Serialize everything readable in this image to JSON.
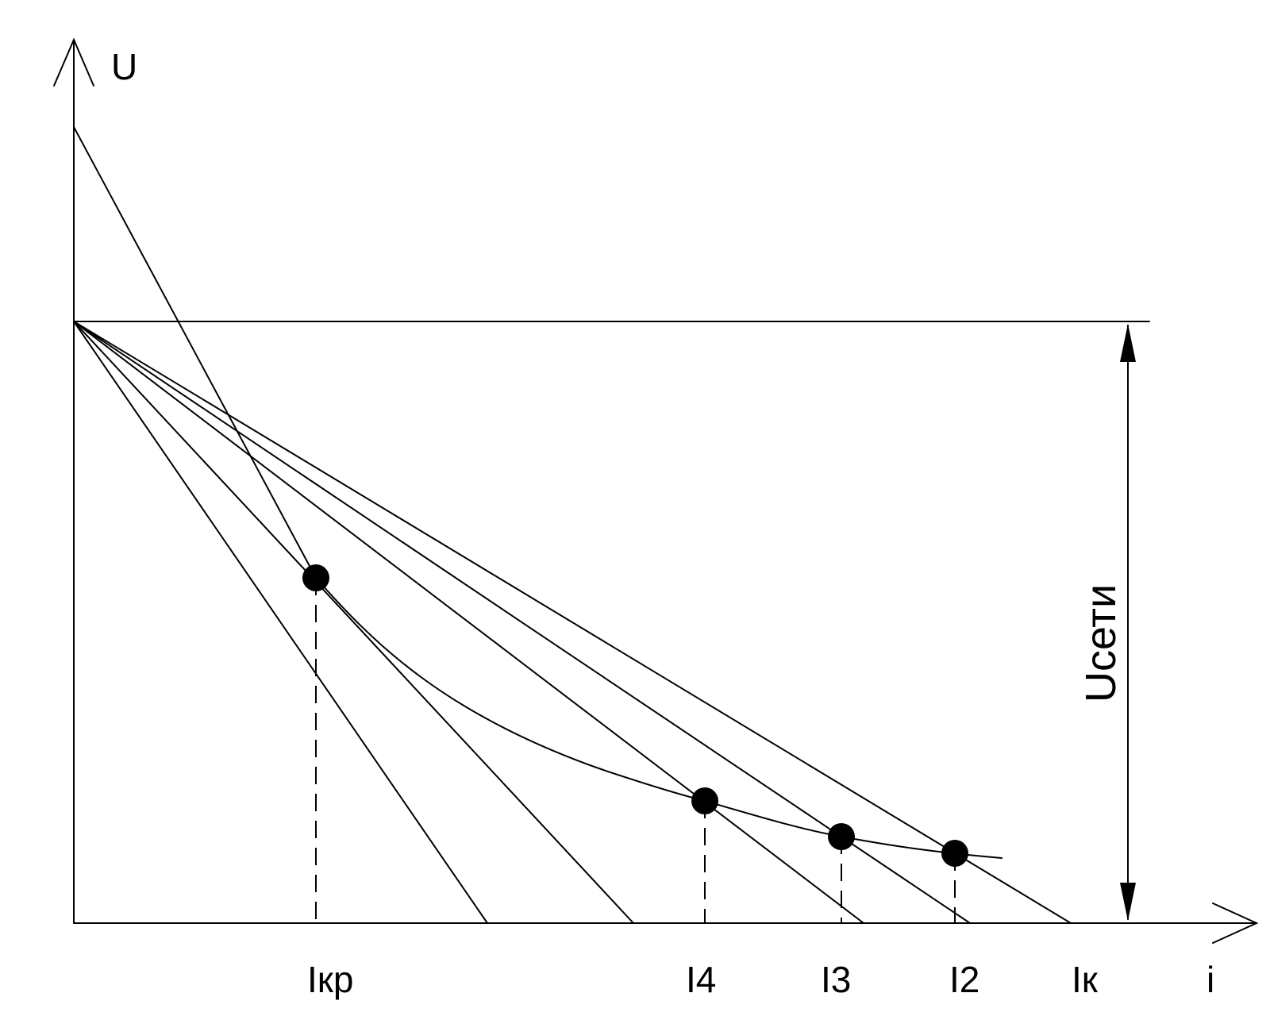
{
  "axes": {
    "x_label": "i",
    "y_label": "U"
  },
  "dimension": {
    "label": "Uсети"
  },
  "tick_labels": [
    {
      "key": "ikr",
      "text": "Iкр"
    },
    {
      "key": "i4",
      "text": "I4"
    },
    {
      "key": "i3",
      "text": "I3"
    },
    {
      "key": "i2",
      "text": "I2"
    },
    {
      "key": "ik",
      "text": "Iк"
    }
  ],
  "colors": {
    "ink": "#000000",
    "background": "#ffffff"
  }
}
